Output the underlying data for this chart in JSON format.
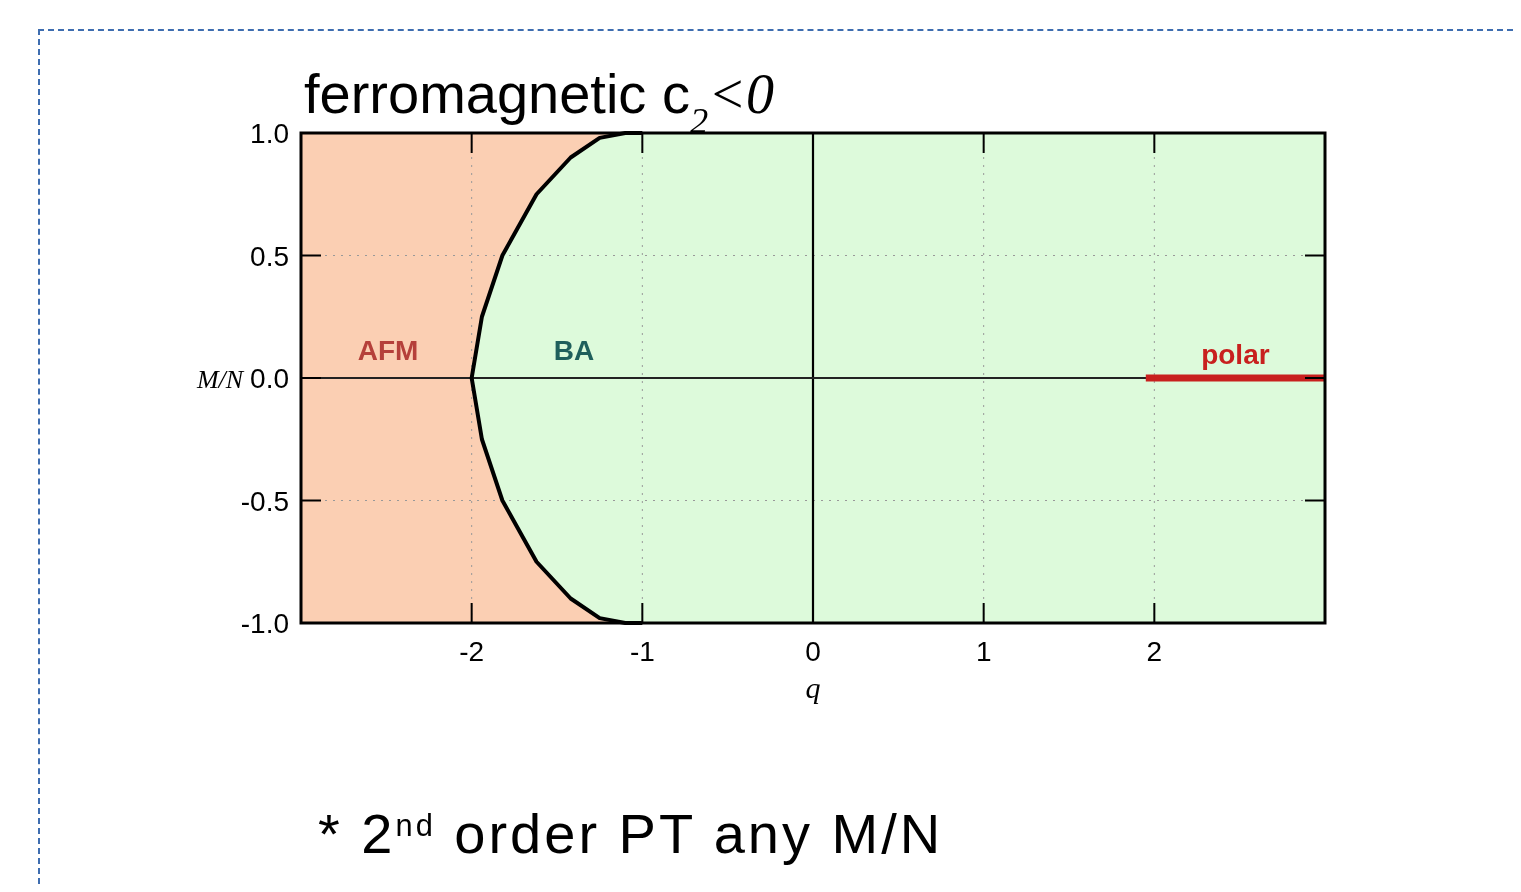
{
  "chart_data": {
    "type": "line",
    "title": "ferromagnetic c$_{2}$<0",
    "xlabel": "q",
    "ylabel": "M/N",
    "xlim": [
      -3,
      3
    ],
    "ylim": [
      -1,
      1
    ],
    "xticks": [
      -2,
      -1,
      0,
      1,
      2
    ],
    "yticks": [
      {
        "value": -1,
        "label": "-1.0"
      },
      {
        "value": -0.5,
        "label": "-0.5"
      },
      {
        "value": 0,
        "label": "0.0"
      },
      {
        "value": 0.5,
        "label": "0.5"
      },
      {
        "value": 1,
        "label": "1.0"
      }
    ],
    "grid": true,
    "bands": [
      {
        "axis": "x",
        "from": -3,
        "to": 3,
        "color": "#ddfadb"
      }
    ],
    "ref_lines": [
      {
        "axis": "x",
        "value": 0,
        "color": "#000000"
      },
      {
        "axis": "y",
        "value": 0,
        "color": "#222222"
      }
    ],
    "series": [
      {
        "color": "#000000",
        "x": [
          -1,
          -1.1,
          -1.25,
          -1.42,
          -1.62,
          -1.82,
          -1.94,
          -2,
          -1.94,
          -1.82,
          -1.62,
          -1.42,
          -1.25,
          -1.1,
          -1
        ],
        "values": [
          -1,
          -1,
          -0.98,
          -0.9,
          -0.75,
          -0.5,
          -0.25,
          0,
          0.25,
          0.5,
          0.75,
          0.9,
          0.98,
          1,
          1
        ]
      },
      {
        "name": "polar",
        "color": "#c8201e",
        "x": [
          1.95,
          3
        ],
        "values": [
          0,
          0
        ]
      }
    ],
    "annotations": [
      "AFM",
      "BA",
      "* 2$^{nd}$ order PT any M/N"
    ]
  }
}
